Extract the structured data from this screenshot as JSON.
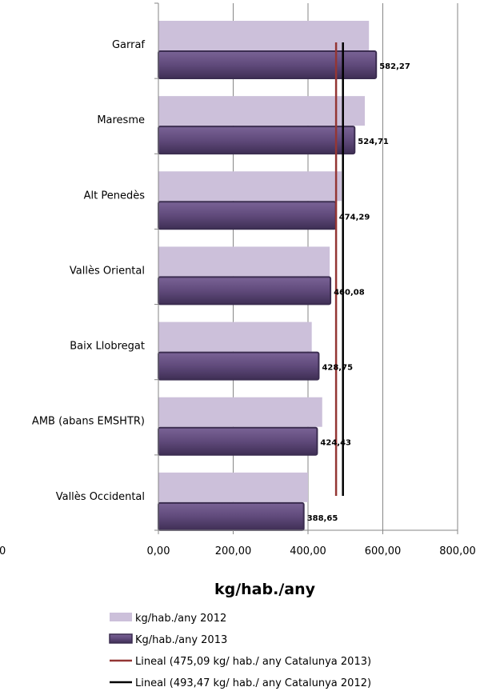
{
  "chart_data": {
    "type": "bar",
    "orientation": "horizontal",
    "categories": [
      "Garraf",
      "Maresme",
      "Alt Penedès",
      "Vallès Oriental",
      "Baix Llobregat",
      "AMB (abans EMSHTR)",
      "Vallès Occidental"
    ],
    "series": [
      {
        "name": "kg/hab./any 2012",
        "values": [
          563,
          552,
          490,
          458,
          410,
          438,
          400
        ],
        "color": "#ccc0da"
      },
      {
        "name": "Kg/hab./any 2013",
        "values": [
          582.27,
          524.71,
          474.29,
          460.08,
          428.75,
          424.43,
          388.65
        ],
        "color": "#604a7b",
        "data_labels": [
          "582,27",
          "524,71",
          "474,29",
          "460,08",
          "428,75",
          "424,43",
          "388,65"
        ]
      }
    ],
    "reference_lines": [
      {
        "name": "Lineal (475,09 kg/ hab./ any Catalunya 2013)",
        "value": 475.09,
        "color": "#943634"
      },
      {
        "name": "Lineal (493,47 kg/ hab./ any Catalunya 2012)",
        "value": 493.47,
        "color": "#000000"
      }
    ],
    "xlim": [
      0,
      800
    ],
    "xticks": [
      0,
      200,
      400,
      600,
      800
    ],
    "xtick_labels": [
      "0,00",
      "200,00",
      "400,00",
      "600,00",
      "800,00"
    ],
    "xlabel": "kg/hab./any",
    "ylabel": "",
    "title": "",
    "grid": true,
    "legend_position": "bottom"
  },
  "stray_text": "0"
}
